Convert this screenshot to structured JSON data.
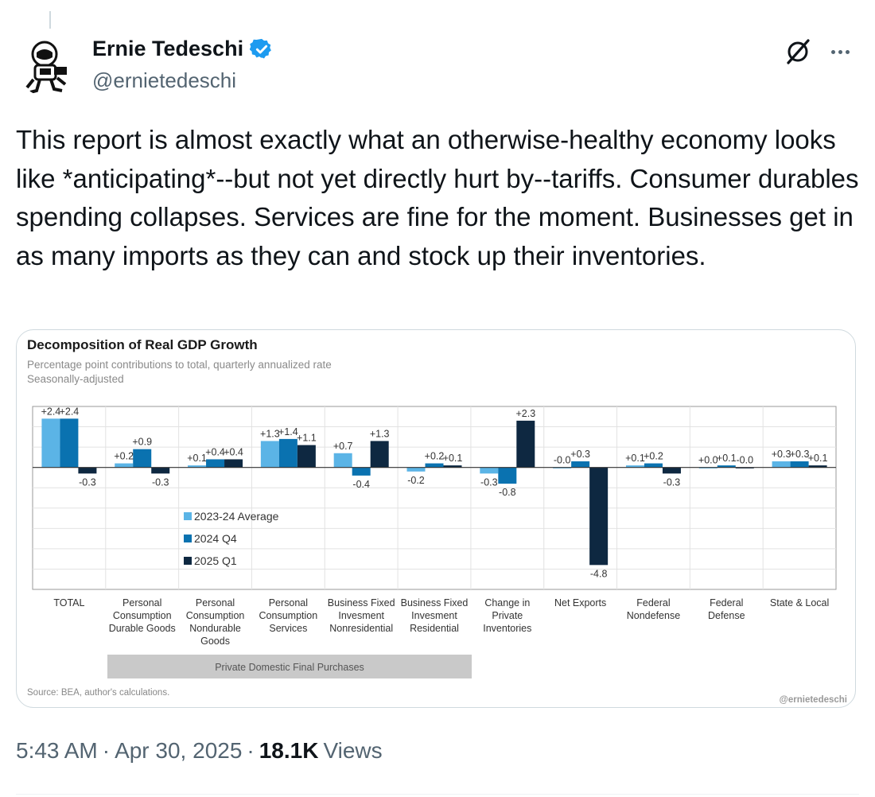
{
  "tweet": {
    "author_name": "Ernie Tedeschi",
    "author_handle": "@ernietedeschi",
    "verified": true,
    "text": "This report is almost exactly what an otherwise-healthy economy looks like *anticipating*--but not yet directly hurt by--tariffs. Consumer durables spending collapses. Services are fine for the moment. Businesses get in as many imports as they can and stock up their inventories.",
    "time": "5:43 AM",
    "date": "Apr 30, 2025",
    "separator": "·",
    "views_count": "18.1K",
    "views_label": "Views",
    "icons": {
      "avatar": "astronaut-avatar",
      "verified": "verified-badge-icon",
      "grok": "grok-icon",
      "more": "more-options-icon"
    },
    "colors": {
      "verified_badge": "#1d9bf0",
      "text_secondary": "#536471"
    }
  },
  "chart_data": {
    "type": "bar",
    "title": "Decomposition of Real GDP Growth",
    "subtitle": "Percentage point contributions to total, quarterly annualized rate",
    "subtitle2": "Seasonally-adjusted",
    "source": "Source: BEA, author's calculations.",
    "watermark": "@ernietedeschi",
    "bracket_label": "Private Domestic Final Purchases",
    "ylim": [
      -6.0,
      3.0
    ],
    "grid": true,
    "legend_position": "center-left",
    "categories": [
      [
        "TOTAL"
      ],
      [
        "Personal",
        "Consumption",
        "Durable Goods"
      ],
      [
        "Personal",
        "Consumption",
        "Nondurable",
        "Goods"
      ],
      [
        "Personal",
        "Consumption",
        "Services"
      ],
      [
        "Business Fixed",
        "Invesment",
        "Nonresidential"
      ],
      [
        "Business Fixed",
        "Invesment",
        "Residential"
      ],
      [
        "Change in",
        "Private",
        "Inventories"
      ],
      [
        "Net Exports"
      ],
      [
        "Federal",
        "Nondefense"
      ],
      [
        "Federal",
        "Defense"
      ],
      [
        "State & Local"
      ]
    ],
    "series": [
      {
        "name": "2023-24 Average",
        "color": "#5bb4e6",
        "values": [
          2.4,
          0.2,
          0.1,
          1.3,
          0.7,
          -0.2,
          -0.3,
          -0.0,
          0.1,
          0.0,
          0.3
        ],
        "labels": [
          "+2.4",
          "+0.2",
          "+0.1",
          "+1.3",
          "+0.7",
          "-0.2",
          "-0.3",
          "-0.0",
          "+0.1",
          "+0.0",
          "+0.3"
        ]
      },
      {
        "name": "2024 Q4",
        "color": "#0a72b0",
        "values": [
          2.4,
          0.9,
          0.4,
          1.4,
          -0.4,
          0.2,
          -0.8,
          0.3,
          0.2,
          0.1,
          0.3
        ],
        "labels": [
          "+2.4",
          "+0.9",
          "+0.4",
          "+1.4",
          "-0.4",
          "+0.2",
          "-0.8",
          "+0.3",
          "+0.2",
          "+0.1",
          "+0.3"
        ]
      },
      {
        "name": "2025 Q1",
        "color": "#0e2841",
        "values": [
          -0.3,
          -0.3,
          0.4,
          1.1,
          1.3,
          0.1,
          2.3,
          -4.8,
          -0.3,
          -0.0,
          0.1
        ],
        "labels": [
          "-0.3",
          "-0.3",
          "+0.4",
          "+1.1",
          "+1.3",
          "+0.1",
          "+2.3",
          "-4.8",
          "-0.3",
          "-0.0",
          "+0.1"
        ]
      }
    ]
  }
}
